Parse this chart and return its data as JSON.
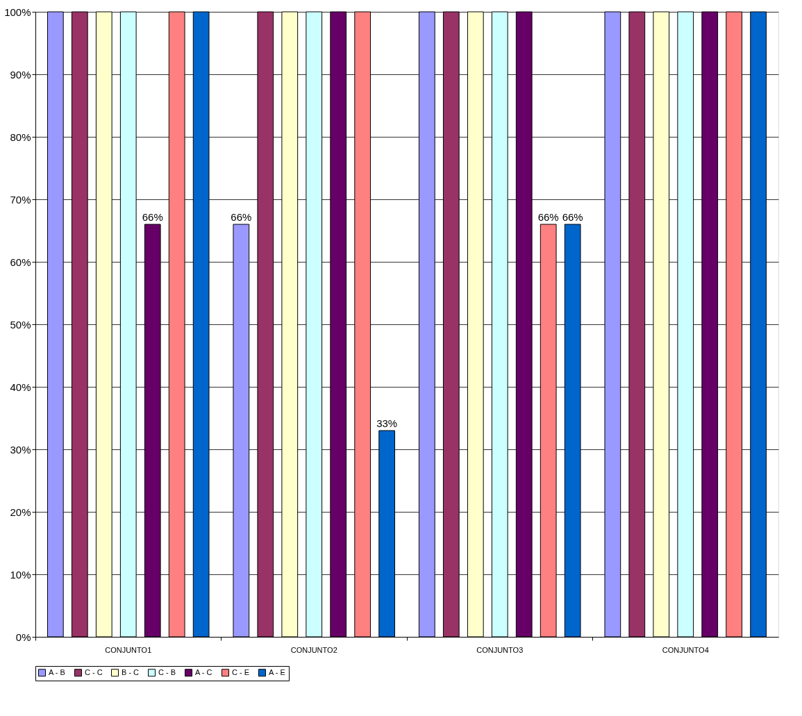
{
  "chart_data": {
    "type": "bar",
    "categories": [
      "CONJUNTO1",
      "CONJUNTO2",
      "CONJUNTO3",
      "CONJUNTO4"
    ],
    "series": [
      {
        "name": "A - B",
        "color": "#9999ff",
        "values": [
          100,
          66,
          100,
          100
        ],
        "value_labels": [
          null,
          "66%",
          null,
          null
        ]
      },
      {
        "name": "C - C",
        "color": "#993366",
        "values": [
          100,
          100,
          100,
          100
        ]
      },
      {
        "name": "B - C",
        "color": "#ffffcc",
        "values": [
          100,
          100,
          100,
          100
        ]
      },
      {
        "name": "C - B",
        "color": "#ccffff",
        "values": [
          100,
          100,
          100,
          100
        ]
      },
      {
        "name": "A - C",
        "color": "#660066",
        "values": [
          66,
          100,
          100,
          100
        ],
        "value_labels": [
          "66%",
          null,
          null,
          null
        ]
      },
      {
        "name": "C - E",
        "color": "#ff8080",
        "values": [
          100,
          100,
          66,
          100
        ],
        "value_labels": [
          null,
          null,
          "66%",
          null
        ]
      },
      {
        "name": "A - E",
        "color": "#0066cc",
        "values": [
          100,
          33,
          66,
          100
        ],
        "value_labels": [
          null,
          "33%",
          "66%",
          null
        ]
      }
    ],
    "ylim": [
      0,
      100
    ],
    "yticks": [
      {
        "value": 0,
        "label": "0%"
      },
      {
        "value": 10,
        "label": "10%"
      },
      {
        "value": 20,
        "label": "20%"
      },
      {
        "value": 30,
        "label": "30%"
      },
      {
        "value": 40,
        "label": "40%"
      },
      {
        "value": 50,
        "label": "50%"
      },
      {
        "value": 60,
        "label": "60%"
      },
      {
        "value": 70,
        "label": "70%"
      },
      {
        "value": 80,
        "label": "80%"
      },
      {
        "value": 90,
        "label": "90%"
      },
      {
        "value": 100,
        "label": "100%"
      }
    ],
    "grid": "y",
    "legend": "bottom"
  }
}
